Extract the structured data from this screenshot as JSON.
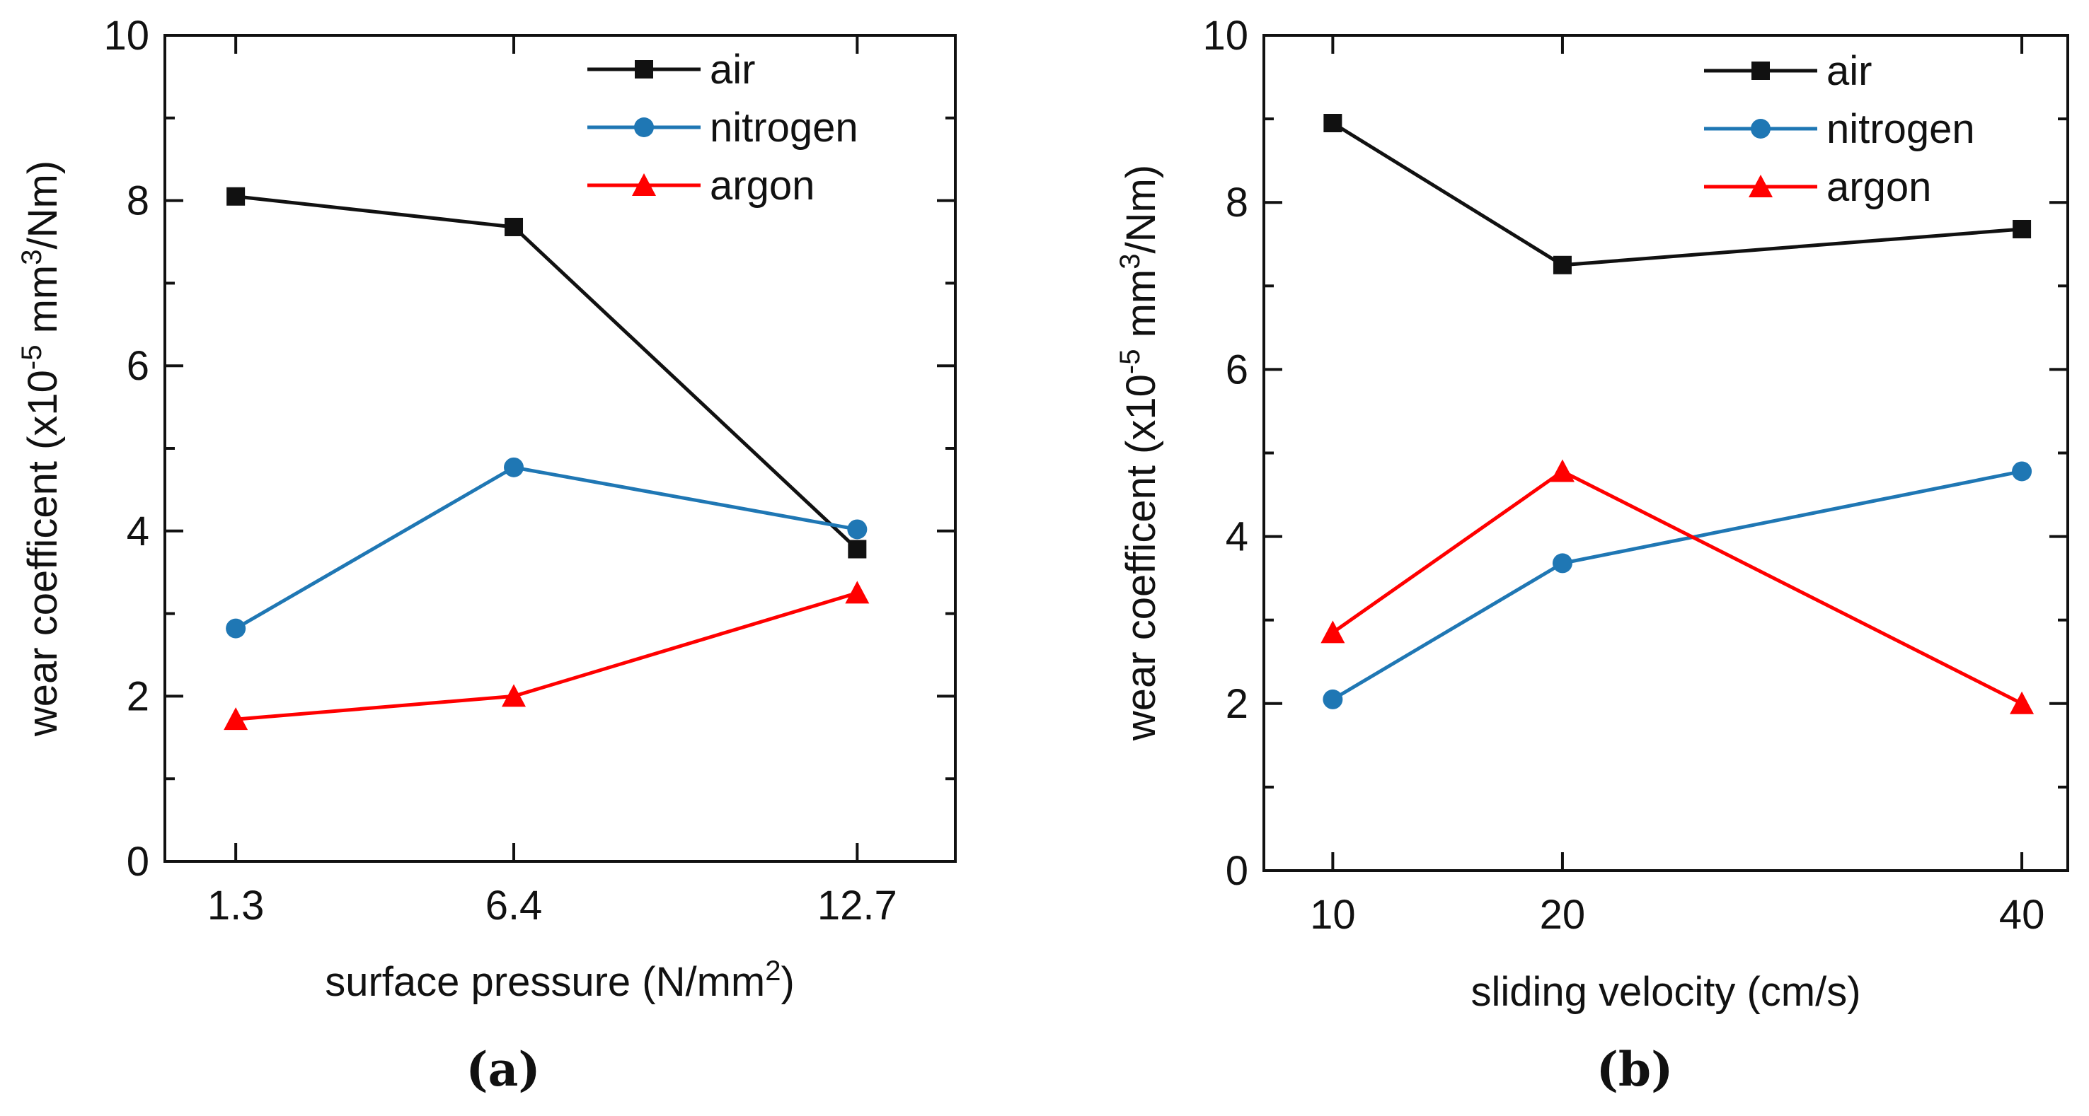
{
  "chart_data": [
    {
      "type": "line",
      "panel_label": "(a)",
      "xlabel": "surface pressure (N/mm",
      "xlabel_sup": "2",
      "xlabel_end": ")",
      "ylabel_pre": "wear coefficent (x10",
      "ylabel_sup1": "-5",
      "ylabel_mid": " mm",
      "ylabel_sup2": "3",
      "ylabel_end": "/Nm)",
      "categories": [
        "1.3",
        "6.4",
        "12.7"
      ],
      "x": [
        1.3,
        6.4,
        12.7
      ],
      "xlim": [
        0,
        14.5
      ],
      "ylim": [
        0,
        10
      ],
      "yticks": [
        0,
        2,
        4,
        6,
        8,
        10
      ],
      "ytick_labels": [
        "0",
        "2",
        "4",
        "6",
        "8",
        "10"
      ],
      "legend_position": "top-right",
      "series": [
        {
          "name": "air",
          "color": "#111111",
          "marker": "square",
          "values": [
            8.05,
            7.68,
            3.78
          ]
        },
        {
          "name": "nitrogen",
          "color": "#1f77b4",
          "marker": "circle",
          "values": [
            2.82,
            4.77,
            4.02
          ]
        },
        {
          "name": "argon",
          "color": "#ff0000",
          "marker": "triangle",
          "values": [
            1.72,
            2.0,
            3.25
          ]
        }
      ]
    },
    {
      "type": "line",
      "panel_label": "(b)",
      "xlabel": "sliding velocity (cm/s)",
      "ylabel_pre": "wear coefficent (x10",
      "ylabel_sup1": "-5",
      "ylabel_mid": " mm",
      "ylabel_sup2": "3",
      "ylabel_end": "/Nm)",
      "categories": [
        "10",
        "20",
        "40"
      ],
      "x": [
        10,
        20,
        40
      ],
      "xlim": [
        7,
        42
      ],
      "ylim": [
        0,
        10
      ],
      "yticks": [
        0,
        2,
        4,
        6,
        8,
        10
      ],
      "ytick_labels": [
        "0",
        "2",
        "4",
        "6",
        "8",
        "10"
      ],
      "legend_position": "top-right",
      "series": [
        {
          "name": "air",
          "color": "#111111",
          "marker": "square",
          "values": [
            8.95,
            7.25,
            7.68
          ]
        },
        {
          "name": "nitrogen",
          "color": "#1f77b4",
          "marker": "circle",
          "values": [
            2.05,
            3.68,
            4.78
          ]
        },
        {
          "name": "argon",
          "color": "#ff0000",
          "marker": "triangle",
          "values": [
            2.85,
            4.78,
            2.0
          ]
        }
      ]
    }
  ]
}
